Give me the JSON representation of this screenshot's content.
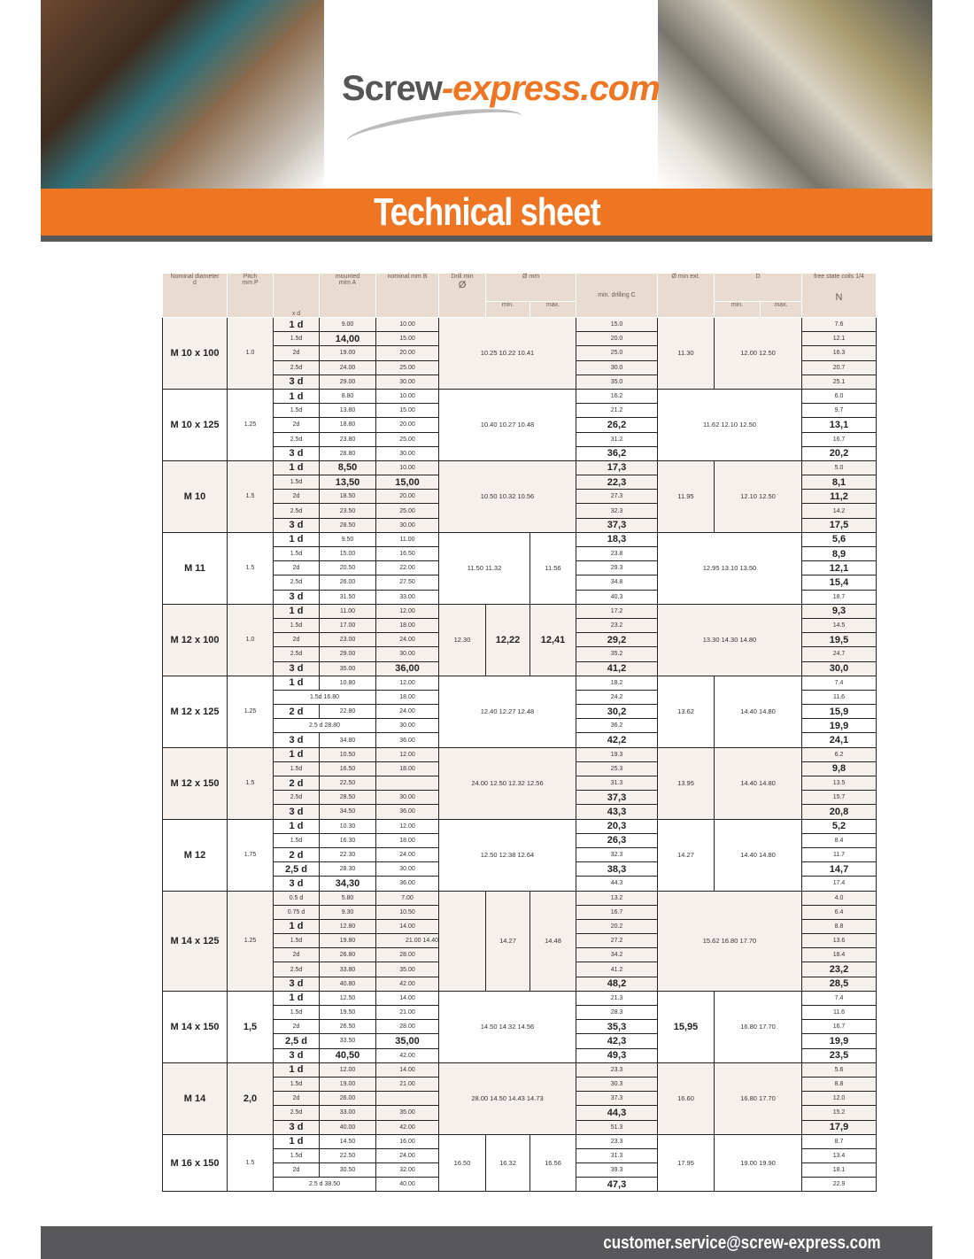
{
  "banner": {
    "logo_main": "Screw",
    "logo_accent": "-express.com",
    "title": "Technical sheet"
  },
  "footer": {
    "email": "customer.service@screw-express.com"
  },
  "colors": {
    "orange": "#ee7623",
    "gray": "#58585a",
    "header_bg": "#e9dbd0",
    "row_shade": "#f6f0ec"
  },
  "table": {
    "headers": {
      "nominal": "Nominal diameter",
      "nominal_sym": "d",
      "pitch": "Pitch",
      "pitch_sym": "mm P",
      "xd": "x d",
      "mounted": "mounted",
      "mounted_sym": "mim A",
      "length": "nominal mm B",
      "drill": "Drill min",
      "drill_sym": "Ø",
      "hole": "Ø mm",
      "min": "min.",
      "max": "max.",
      "drilling": "min. drilling C",
      "ext": "Ø min ext.",
      "d": "D",
      "d_min": "min.",
      "d_max": "max.",
      "coils": "free state coils 1/4",
      "coils_sym": "N"
    },
    "groups": [
      {
        "name": "M 10 x 100",
        "pitch": "1.0",
        "mid_span": "10.25 10.22 10.41",
        "ext": "11.30",
        "d_range": "12.00 12.50",
        "rows": [
          [
            "1 d",
            "9.00",
            "10.00",
            "15.0",
            "7.6"
          ],
          [
            "1.5d",
            "14,00",
            "15.00",
            "20.0",
            "12.1"
          ],
          [
            "2d",
            "19.00",
            "20.00",
            "25.0",
            "16.3"
          ],
          [
            "2.5d",
            "24.00",
            "25.00",
            "30.0",
            "20.7"
          ],
          [
            "3 d",
            "29.00",
            "30.00",
            "35.0",
            "25.1"
          ]
        ]
      },
      {
        "name": "M 10 x 125",
        "pitch": "1.25",
        "mid_span": "10.40 10.27 10.48",
        "ext_span": "11.62 12.10 12.50",
        "rows": [
          [
            "1 d",
            "8.80",
            "10.00",
            "16.2",
            "6.0"
          ],
          [
            "1.5d",
            "13.80",
            "15.00",
            "21.2",
            "9.7"
          ],
          [
            "2d",
            "18.80",
            "20.00",
            "26,2",
            "13,1"
          ],
          [
            "2.5d",
            "23.80",
            "25.00",
            "31.2",
            "16.7"
          ],
          [
            "3 d",
            "28.80",
            "30.00",
            "36,2",
            "20,2"
          ]
        ]
      },
      {
        "name": "M 10",
        "pitch": "1.5",
        "mid_span": "10.50 10.32 10.56",
        "ext": "11.95",
        "d_range": "12.10 12.50",
        "rows": [
          [
            "1 d",
            "8,50",
            "10.00",
            "17,3",
            "5.0"
          ],
          [
            "1.5d",
            "13,50",
            "15,00",
            "22,3",
            "8,1"
          ],
          [
            "2d",
            "18.50",
            "20.00",
            "27.3",
            "11,2"
          ],
          [
            "2.5d",
            "23.50",
            "25.00",
            "32.3",
            "14.2"
          ],
          [
            "3 d",
            "28.50",
            "30.00",
            "37,3",
            "17,5"
          ]
        ]
      },
      {
        "name": "M 11",
        "pitch": "1.5",
        "mid_span2": "11.50 11.32",
        "max": "11.56",
        "ext_span": "12.95 13.10 13.50",
        "rows": [
          [
            "1 d",
            "9.50",
            "11.00",
            "18,3",
            "5,6"
          ],
          [
            "1.5d",
            "15.00",
            "16.50",
            "23.8",
            "8,9"
          ],
          [
            "2d",
            "20.50",
            "22.00",
            "29.3",
            "12,1"
          ],
          [
            "2.5d",
            "26.00",
            "27.50",
            "34.8",
            "15,4"
          ],
          [
            "3 d",
            "31.50",
            "33.00",
            "40.3",
            "18.7"
          ]
        ]
      },
      {
        "name": "M 12 x 100",
        "pitch": "1.0",
        "drill": "12.30",
        "min": "12,22",
        "max": "12,41",
        "ext_span": "13.30 14.30 14.80",
        "rows": [
          [
            "1 d",
            "11.00",
            "12.00",
            "17.2",
            "9,3"
          ],
          [
            "1.5d",
            "17.00",
            "18.00",
            "23.2",
            "14.5"
          ],
          [
            "2d",
            "23.00",
            "24.00",
            "29,2",
            "19,5"
          ],
          [
            "2.5d",
            "29.00",
            "30.00",
            "35.2",
            "24.7"
          ],
          [
            "3 d",
            "35.00",
            "36,00",
            "41,2",
            "30,0"
          ]
        ]
      },
      {
        "name": "M 12 x 125",
        "pitch": "1.25",
        "mid_span": "12.40 12.27 12.48",
        "ext": "13.62",
        "d_range": "14.40 14.80",
        "rows": [
          [
            "1 d",
            "10.80",
            "12.00",
            "18.2",
            "7.4"
          ],
          [
            "1.5d 16.80",
            null,
            "18.00",
            "24.2",
            "11.6"
          ],
          [
            "2 d",
            "22.80",
            "24.00",
            "30,2",
            "15,9"
          ],
          [
            "2.5 d 28.80",
            null,
            "30.00",
            "36.2",
            "19,9"
          ],
          [
            "3 d",
            "34.80",
            "36.00",
            "42,2",
            "24,1"
          ]
        ]
      },
      {
        "name": "M 12 x 150",
        "pitch": "1.5",
        "mid_span": "24.00 12.50 12.32 12.56",
        "ext": "13.95",
        "d_range": "14.40 14.80",
        "rows": [
          [
            "1 d",
            "10.50",
            "12.00",
            "19.3",
            "6.2"
          ],
          [
            "1.5d",
            "16.50",
            "18.00",
            "25.3",
            "9,8"
          ],
          [
            "2 d",
            "22.50",
            "",
            "31.3",
            "13.5"
          ],
          [
            "2.5d",
            "28.50",
            "30.00",
            "37,3",
            "15.7"
          ],
          [
            "3 d",
            "34.50",
            "36.00",
            "43,3",
            "20,8"
          ]
        ]
      },
      {
        "name": "M 12",
        "pitch": "1.75",
        "mid_span": "12.50 12.38 12.64",
        "ext": "14.27",
        "d_range": "14.40 14.80",
        "rows": [
          [
            "1 d",
            "10.30",
            "12.00",
            "20,3",
            "5,2"
          ],
          [
            "1.5d",
            "16.30",
            "18.00",
            "26,3",
            "8.4"
          ],
          [
            "2 d",
            "22.30",
            "24.00",
            "32.3",
            "11.7"
          ],
          [
            "2,5 d",
            "28.30",
            "30.00",
            "38,3",
            "14,7"
          ],
          [
            "3 d",
            "34,30",
            "36.00",
            "44.3",
            "17.4"
          ]
        ]
      },
      {
        "name": "M 14 x 125",
        "pitch": "1.25",
        "drill": "",
        "min": "14.27",
        "max": "14.48",
        "ext_span": "15.62 16.80 17.70",
        "rows": [
          [
            "0.5 d",
            "5.80",
            "7.00",
            "13.2",
            "4.0"
          ],
          [
            "0.75 d",
            "9.30",
            "10.50",
            "16.7",
            "6.4"
          ],
          [
            "1 d",
            "12.80",
            "14.00",
            "20.2",
            "8.8"
          ],
          [
            "1.5d",
            "19.80",
            "21.00 14.40",
            "27.2",
            "13.6"
          ],
          [
            "2d",
            "26.80",
            "28.00",
            "34.2",
            "18.4"
          ],
          [
            "2.5d",
            "33.80",
            "35.00",
            "41.2",
            "23,2"
          ],
          [
            "3 d",
            "40.80",
            "42.00",
            "48,2",
            "28,5"
          ]
        ]
      },
      {
        "name": "M 14 x 150",
        "pitch": "1,5",
        "mid_span": "14.50 14.32 14.56",
        "ext": "15,95",
        "d_range": "16.80 17.70",
        "rows": [
          [
            "1 d",
            "12.50",
            "14.00",
            "21.3",
            "7.4"
          ],
          [
            "1.5d",
            "19.50",
            "21.00",
            "28.3",
            "11.6"
          ],
          [
            "2d",
            "26.50",
            "28.00",
            "35,3",
            "16.7"
          ],
          [
            "2,5 d",
            "33.50",
            "35,00",
            "42,3",
            "19,9"
          ],
          [
            "3 d",
            "40,50",
            "42.00",
            "49,3",
            "23,5"
          ]
        ]
      },
      {
        "name": "M 14",
        "pitch": "2,0",
        "mid_span": "28.00 14.50 14.43 14.73",
        "ext": "16.60",
        "d_range": "16.80 17.70",
        "rows": [
          [
            "1 d",
            "12.00",
            "14.00",
            "23.3",
            "5.6"
          ],
          [
            "1.5d",
            "19.00",
            "21.00",
            "30.3",
            "8.8"
          ],
          [
            "2d",
            "26.00",
            "",
            "37.3",
            "12.0"
          ],
          [
            "2.5d",
            "33.00",
            "35.00",
            "44,3",
            "15.2"
          ],
          [
            "3 d",
            "40.00",
            "42.00",
            "51.3",
            "17,9"
          ]
        ]
      },
      {
        "name": "M 16 x 150",
        "pitch": "1.5",
        "drill": "16.50",
        "min": "16.32",
        "max": "16.56",
        "ext": "17.95",
        "d_range": "19.00 19.90",
        "rows": [
          [
            "1 d",
            "14.50",
            "16.00",
            "23.3",
            "8.7"
          ],
          [
            "1.5d",
            "22.50",
            "24.00",
            "31.3",
            "13.4"
          ],
          [
            "2d",
            "30.50",
            "32.00",
            "39.3",
            "18.1"
          ],
          [
            "2.5 d 38.50",
            null,
            "40.00",
            "47,3",
            "22.9"
          ]
        ]
      }
    ]
  }
}
